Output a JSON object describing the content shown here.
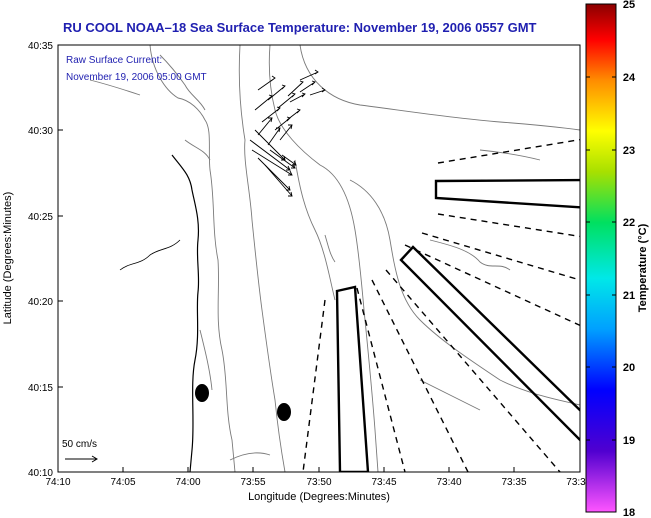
{
  "title": "RU COOL  NOAA–18  Sea Surface Temperature:  November 19, 2006 0557 GMT",
  "annotation": {
    "line1": "Raw Surface Current:",
    "line2": "November 19, 2006 05:00 GMT"
  },
  "axes": {
    "xlabel": "Longitude (Degrees:Minutes)",
    "ylabel": "Latitude (Degrees:Minutes)",
    "xticks": [
      "74:10",
      "74:05",
      "74:00",
      "73:55",
      "73:50",
      "73:45",
      "73:40",
      "73:35",
      "73:3"
    ],
    "yticks": [
      "40:35",
      "40:30",
      "40:25",
      "40:20",
      "40:15",
      "40:10"
    ]
  },
  "scale": {
    "label": "50 cm/s"
  },
  "colorbar": {
    "label": "Temperature (°C)",
    "ticks": [
      "25",
      "24",
      "23",
      "22",
      "21",
      "20",
      "19",
      "18"
    ],
    "min": 18,
    "max": 25
  },
  "colors": {
    "title": "#1f1fb0",
    "annotation": "#1f1fb0",
    "frame": "#000000",
    "contour": "#7a7a7a"
  }
}
